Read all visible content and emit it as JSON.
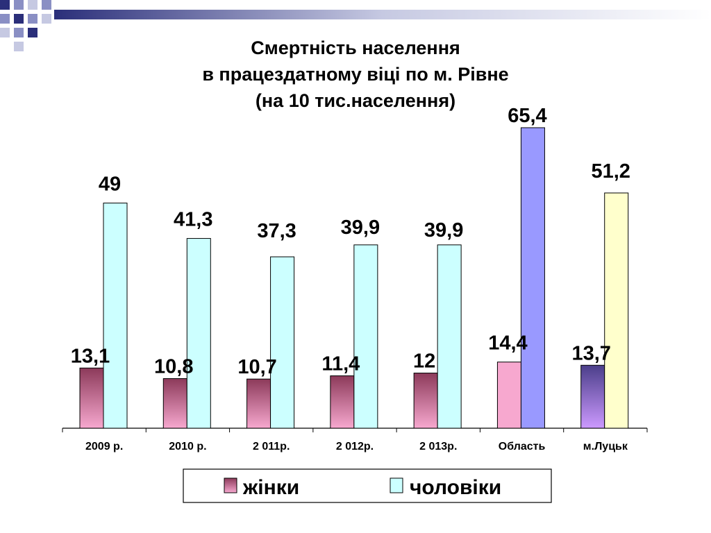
{
  "decor_colors": [
    "#2b2f7a",
    "#8a8fc4",
    "#c6c9e2"
  ],
  "chart_data": {
    "type": "bar",
    "title": [
      "Смертність населення",
      "в працездатному віці по м. Рівне",
      "(на 10 тис.населення)"
    ],
    "categories": [
      "2009 р.",
      "2010 р.",
      "2 011р.",
      "2 012р.",
      "2 013р.",
      "Область",
      "м.Луцьк"
    ],
    "series": [
      {
        "name": "жінки",
        "values": [
          13.1,
          10.8,
          10.7,
          11.4,
          12,
          14.4,
          13.7
        ],
        "labels": [
          "13,1",
          "10,8",
          "10,7",
          "11,4",
          "12",
          "14,4",
          "13,7"
        ],
        "color": "#f7a8cf",
        "gradient_top": "#8c3a5a",
        "overrides": {
          "5": {
            "color": "#f7a8cf",
            "flat": true
          },
          "6": {
            "color": "#cc99ff",
            "gradient_top": "#4b3f8a"
          }
        }
      },
      {
        "name": "чоловіки",
        "values": [
          49,
          41.3,
          37.3,
          39.9,
          39.9,
          65.4,
          51.2
        ],
        "labels": [
          "49",
          "41,3",
          "37,3",
          "39,9",
          "39,9",
          "65,4",
          "51,2"
        ],
        "color": "#ccffff",
        "overrides": {
          "5": {
            "color": "#9999ff"
          },
          "6": {
            "color": "#ffffcc"
          }
        }
      }
    ],
    "ylim": [
      0,
      70
    ],
    "grid": false,
    "legend": "bottom"
  }
}
